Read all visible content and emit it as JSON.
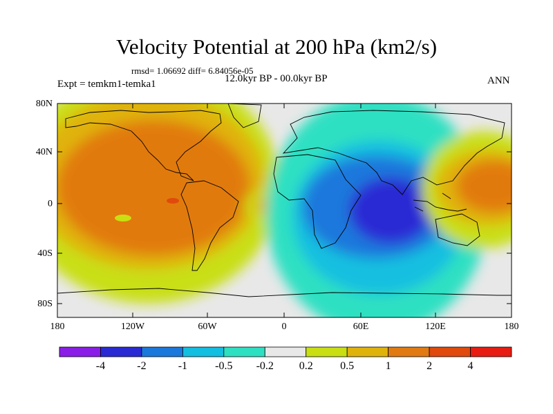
{
  "title": "Velocity Potential at 200 hPa (km2/s)",
  "stats": "rmsd= 1.06692 diff= 6.84056e-05",
  "period": "12.0kyr BP - 00.0kyr BP",
  "experiment": "Expt = temkm1-temka1",
  "season": "ANN",
  "map": {
    "lat_ticks": [
      "80N",
      "40N",
      "0",
      "40S",
      "80S"
    ],
    "lon_ticks": [
      "180",
      "120W",
      "60W",
      "0",
      "60E",
      "120E",
      "180"
    ]
  },
  "colorbar": {
    "labels": [
      "-4",
      "-2",
      "-1",
      "-0.5",
      "-0.2",
      "0.2",
      "0.5",
      "1",
      "2",
      "4"
    ],
    "colors": [
      "#8a1ee8",
      "#2a2ad4",
      "#1a78dc",
      "#12bfe0",
      "#2ee0c2",
      "#e8e8e8",
      "#c9df12",
      "#e0b20c",
      "#e17a10",
      "#e04a0c",
      "#e81c12"
    ]
  }
}
